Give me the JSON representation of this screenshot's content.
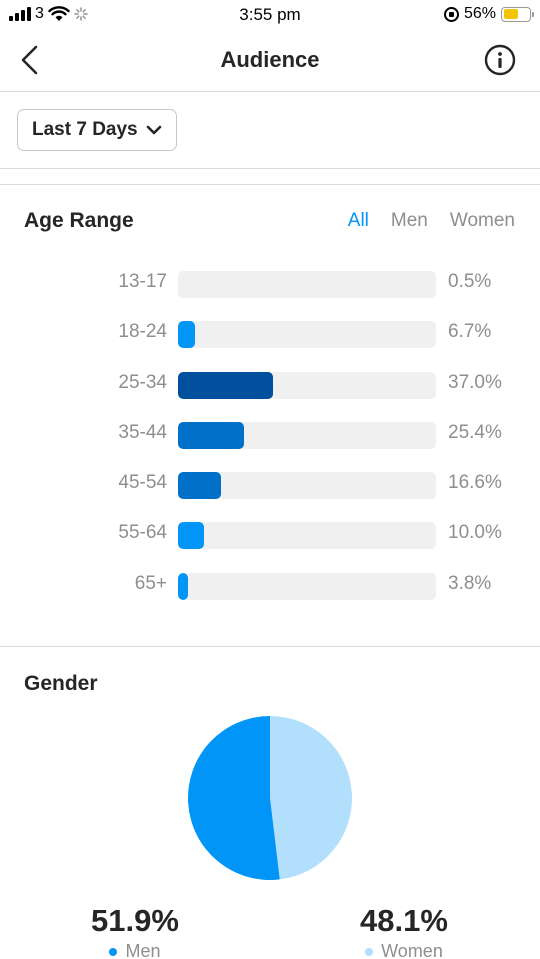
{
  "status_bar": {
    "carrier": "3",
    "time": "3:55 pm",
    "battery": "56%",
    "icons": [
      "signal-icon",
      "wifi-icon",
      "activity-spinner-icon",
      "rotation-lock-icon",
      "battery-icon"
    ]
  },
  "header": {
    "title": "Audience",
    "back_icon": "chevron-left-icon",
    "info_icon": "info-icon"
  },
  "filter": {
    "range_label": "Last 7 Days",
    "icon": "chevron-down-icon"
  },
  "age_range": {
    "title": "Age Range",
    "tabs": [
      {
        "label": "All",
        "active": true
      },
      {
        "label": "Men",
        "active": false
      },
      {
        "label": "Women",
        "active": false
      }
    ],
    "rows": [
      {
        "label": "13-17",
        "pct": "0.5%",
        "value": 0.5,
        "color": "#0095f6"
      },
      {
        "label": "18-24",
        "pct": "6.7%",
        "value": 6.7,
        "color": "#0095f6"
      },
      {
        "label": "25-34",
        "pct": "37.0%",
        "value": 37.0,
        "color": "#00509d"
      },
      {
        "label": "35-44",
        "pct": "25.4%",
        "value": 25.4,
        "color": "#0070c9"
      },
      {
        "label": "45-54",
        "pct": "16.6%",
        "value": 16.6,
        "color": "#0070c9"
      },
      {
        "label": "55-64",
        "pct": "10.0%",
        "value": 10.0,
        "color": "#0095f6"
      },
      {
        "label": "65+",
        "pct": "3.8%",
        "value": 3.8,
        "color": "#0095f6"
      }
    ]
  },
  "gender": {
    "title": "Gender",
    "men": {
      "pct": "51.9%",
      "label": "Men",
      "value": 51.9,
      "color": "#0095f6"
    },
    "women": {
      "pct": "48.1%",
      "label": "Women",
      "value": 48.1,
      "color": "#b2dffc"
    }
  },
  "colors": {
    "accent": "#0095f6",
    "track": "#f0f0f0",
    "muted_text": "#8e8e8e"
  }
}
